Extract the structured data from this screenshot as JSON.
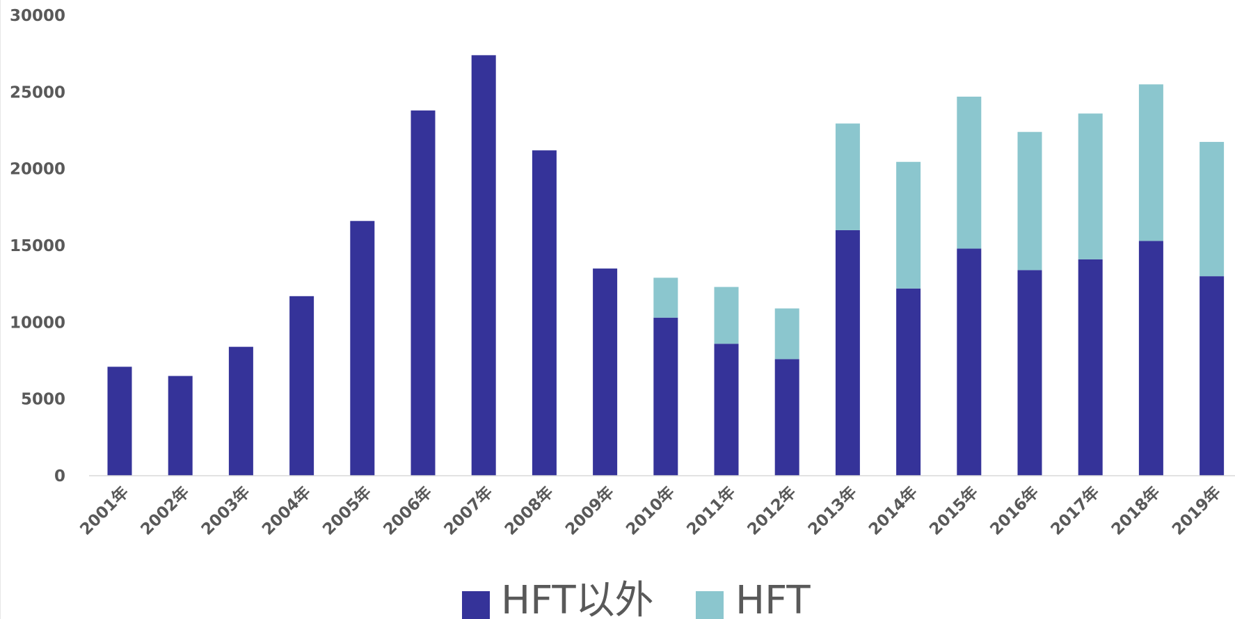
{
  "chart_data": {
    "type": "bar",
    "stacked": true,
    "title": "",
    "xlabel": "",
    "ylabel": "",
    "categories": [
      "2001年",
      "2002年",
      "2003年",
      "2004年",
      "2005年",
      "2006年",
      "2007年",
      "2008年",
      "2009年",
      "2010年",
      "2011年",
      "2012年",
      "2013年",
      "2014年",
      "2015年",
      "2016年",
      "2017年",
      "2018年",
      "2019年"
    ],
    "series": [
      {
        "name": "HFT以外",
        "color": "#353399",
        "values": [
          7100,
          6500,
          8400,
          11700,
          16600,
          23800,
          27400,
          21200,
          13500,
          10300,
          8600,
          7600,
          16000,
          12200,
          14800,
          13400,
          14100,
          15300,
          13000
        ]
      },
      {
        "name": "HFT",
        "color": "#8BC6CE",
        "values": [
          0,
          0,
          0,
          0,
          0,
          0,
          0,
          0,
          0,
          2600,
          3700,
          3300,
          6950,
          8250,
          9900,
          9000,
          9500,
          10200,
          8750
        ]
      }
    ],
    "ylim": [
      0,
      30000
    ],
    "yticks": [
      0,
      5000,
      10000,
      15000,
      20000,
      25000,
      30000
    ],
    "grid": false,
    "legend_position": "bottom"
  }
}
